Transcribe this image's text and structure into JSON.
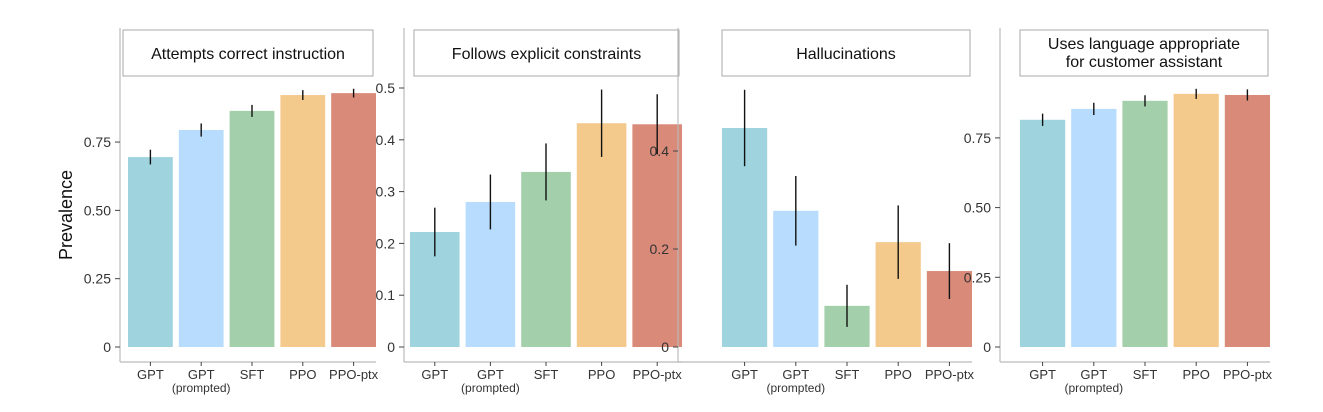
{
  "chart_data": {
    "type": "bar",
    "ylabel": "Prevalence",
    "categories": [
      "GPT",
      "GPT",
      "SFT",
      "PPO",
      "PPO-ptx"
    ],
    "category_sublabels": [
      "",
      "(prompted)",
      "",
      "",
      ""
    ],
    "colors": [
      "#9fd4df",
      "#b8dcfd",
      "#a4cfab",
      "#f4c98c",
      "#d98a78"
    ],
    "panels": [
      {
        "title": [
          "Attempts correct instruction"
        ],
        "ylim": [
          0,
          1.16
        ],
        "yticks": [
          0,
          0.25,
          0.5,
          0.75
        ],
        "ytick_labels": [
          "0",
          "0.25",
          "0.50",
          "0.75"
        ],
        "values": [
          0.695,
          0.794,
          0.864,
          0.922,
          0.929
        ],
        "errors": [
          0.027,
          0.024,
          0.022,
          0.018,
          0.016
        ]
      },
      {
        "title": [
          "Follows explicit constraints"
        ],
        "ylim": [
          0,
          0.612
        ],
        "yticks": [
          0,
          0.1,
          0.2,
          0.3,
          0.4,
          0.5
        ],
        "ytick_labels": [
          "0",
          "0.1",
          "0.2",
          "0.3",
          "0.4",
          "0.5"
        ],
        "values": [
          0.222,
          0.28,
          0.338,
          0.432,
          0.43
        ],
        "errors": [
          0.047,
          0.053,
          0.055,
          0.065,
          0.058
        ]
      },
      {
        "title": [
          "Hallucinations"
        ],
        "ylim": [
          0,
          0.647
        ],
        "yticks": [
          0,
          0.2,
          0.4
        ],
        "ytick_labels": [
          "0",
          "0.2",
          "0.4"
        ],
        "values": [
          0.447,
          0.278,
          0.084,
          0.214,
          0.155
        ],
        "errors": [
          0.078,
          0.071,
          0.043,
          0.075,
          0.057
        ]
      },
      {
        "title": [
          "Uses language appropriate",
          "for customer assistant"
        ],
        "ylim": [
          0,
          1.137
        ],
        "yticks": [
          0,
          0.25,
          0.5,
          0.75
        ],
        "ytick_labels": [
          "0",
          "0.25",
          "0.50",
          "0.75"
        ],
        "values": [
          0.815,
          0.854,
          0.883,
          0.908,
          0.904
        ],
        "errors": [
          0.022,
          0.022,
          0.02,
          0.018,
          0.02
        ]
      }
    ]
  }
}
